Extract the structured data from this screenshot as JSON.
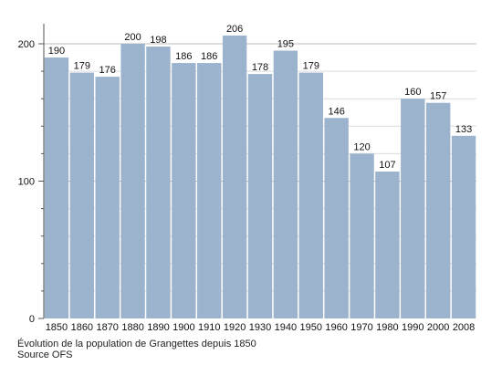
{
  "chart_data": {
    "type": "bar",
    "categories": [
      "1850",
      "1860",
      "1870",
      "1880",
      "1890",
      "1900",
      "1910",
      "1920",
      "1930",
      "1940",
      "1950",
      "1960",
      "1970",
      "1980",
      "1990",
      "2000",
      "2008"
    ],
    "values": [
      190,
      179,
      176,
      200,
      198,
      186,
      186,
      206,
      178,
      195,
      179,
      146,
      120,
      107,
      160,
      157,
      133
    ],
    "ylim": [
      0,
      210
    ],
    "yticks": [
      0,
      100,
      200
    ],
    "grid": true,
    "data_labels": true,
    "bar_color": "#9bb3cc",
    "caption": "Évolution de la population de Grangettes depuis 1850",
    "source": "Source OFS"
  }
}
